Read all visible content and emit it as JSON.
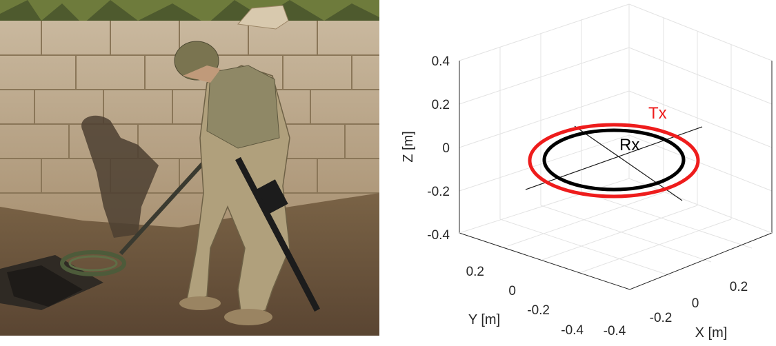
{
  "photo": {
    "description_icon": "soldier-metal-detector-photo"
  },
  "plot": {
    "z_axis": {
      "title": "Z [m]",
      "ticks": [
        "0.4",
        "0.2",
        "0",
        "-0.2",
        "-0.4"
      ]
    },
    "y_axis": {
      "title": "Y [m]",
      "ticks": [
        "0.2",
        "0",
        "-0.2",
        "-0.4"
      ]
    },
    "x_axis": {
      "title": "X [m]",
      "ticks": [
        "-0.4",
        "-0.2",
        "0",
        "0.2"
      ]
    },
    "coils": [
      {
        "label": "Tx",
        "color": "#ee1c1c"
      },
      {
        "label": "Rx",
        "color": "#000000"
      }
    ]
  }
}
